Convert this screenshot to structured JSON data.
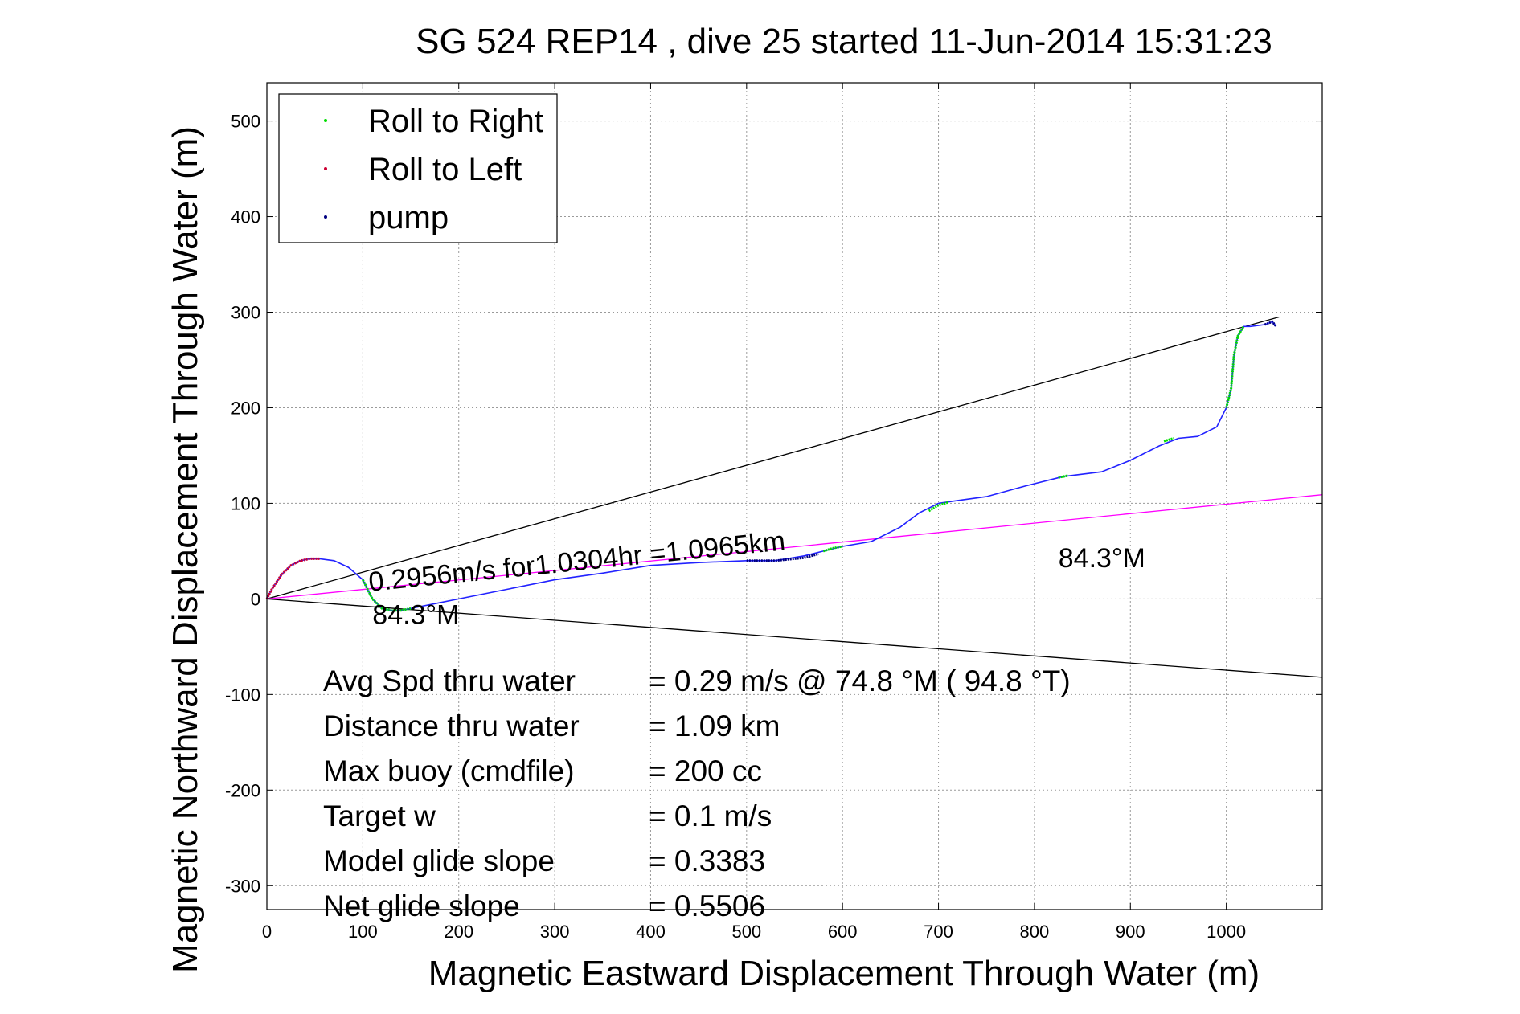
{
  "chart_data": {
    "type": "line",
    "title": "SG 524   REP14  , dive 25 started 11-Jun-2014 15:31:23",
    "xlabel": "Magnetic Eastward Displacement Through Water (m)",
    "ylabel": "Magnetic Northward Displacement Through Water (m)",
    "xlim": [
      0,
      1100
    ],
    "ylim": [
      -325,
      540
    ],
    "x_ticks": [
      0,
      100,
      200,
      300,
      400,
      500,
      600,
      700,
      800,
      900,
      1000
    ],
    "y_ticks": [
      -300,
      -200,
      -100,
      0,
      100,
      200,
      300,
      400,
      500
    ],
    "grid": true,
    "legend_position": "top-left",
    "legend": [
      {
        "label": "Roll to Right",
        "color": "#00dd00"
      },
      {
        "label": "Roll to Left",
        "color": "#cc0033"
      },
      {
        "label": "pump",
        "color": "#000080"
      }
    ],
    "track": {
      "name": "track",
      "color": "#2222ff",
      "x": [
        0,
        5,
        15,
        25,
        35,
        45,
        55,
        70,
        85,
        100,
        105,
        110,
        115,
        120,
        130,
        140,
        150,
        160,
        175,
        200,
        250,
        300,
        350,
        400,
        450,
        500,
        530,
        560,
        580,
        600,
        630,
        660,
        680,
        700,
        720,
        750,
        790,
        830,
        870,
        900,
        930,
        950,
        970,
        990,
        1000,
        1005,
        1008,
        1012,
        1018,
        1025,
        1040,
        1048,
        1052
      ],
      "y": [
        0,
        10,
        25,
        35,
        40,
        42,
        42,
        40,
        33,
        20,
        10,
        0,
        -5,
        -10,
        -12,
        -12,
        -10,
        -8,
        -5,
        0,
        10,
        20,
        27,
        35,
        38,
        40,
        40,
        45,
        50,
        55,
        60,
        75,
        90,
        100,
        103,
        107,
        118,
        128,
        133,
        145,
        160,
        168,
        170,
        180,
        200,
        220,
        255,
        275,
        285,
        285,
        287,
        290,
        285
      ]
    },
    "roll_right": [
      {
        "x": [
          100,
          105,
          110,
          115,
          120,
          130,
          140,
          150
        ],
        "y": [
          20,
          10,
          0,
          -5,
          -10,
          -12,
          -12,
          -10
        ]
      },
      {
        "x": [
          580,
          590,
          600
        ],
        "y": [
          50,
          53,
          55
        ]
      },
      {
        "x": [
          690,
          700,
          710
        ],
        "y": [
          92,
          98,
          101
        ]
      },
      {
        "x": [
          825,
          835
        ],
        "y": [
          127,
          129
        ]
      },
      {
        "x": [
          935,
          945
        ],
        "y": [
          165,
          168
        ]
      },
      {
        "x": [
          1000,
          1005,
          1008,
          1012,
          1018
        ],
        "y": [
          200,
          220,
          255,
          275,
          285
        ]
      }
    ],
    "roll_left": [
      {
        "x": [
          0,
          5,
          15,
          25,
          35,
          45,
          55
        ],
        "y": [
          0,
          10,
          25,
          35,
          40,
          42,
          42
        ]
      }
    ],
    "pump": [
      {
        "x": [
          500,
          530,
          560,
          575
        ],
        "y": [
          40,
          40,
          43,
          47
        ]
      },
      {
        "x": [
          1040,
          1048,
          1052
        ],
        "y": [
          287,
          290,
          285
        ]
      }
    ],
    "reference_lines": [
      {
        "name": "upper-bound-line",
        "color": "#000000",
        "x": [
          0,
          1055
        ],
        "y": [
          0,
          295
        ]
      },
      {
        "name": "lower-bound-line",
        "color": "#000000",
        "x": [
          0,
          1100
        ],
        "y": [
          0,
          -82
        ]
      },
      {
        "name": "heading-line",
        "color": "#ff00ff",
        "x": [
          0,
          1100
        ],
        "y": [
          0,
          109
        ]
      }
    ],
    "annotations": [
      {
        "name": "speed-annotation",
        "text": "0.2956m/s for1.0304hr =1.0965km",
        "x": 107,
        "y": 8,
        "angle": 5.7
      },
      {
        "name": "heading-annotation-left",
        "text": "84.3°M",
        "x": 110,
        "y": -26,
        "angle": 0
      },
      {
        "name": "heading-annotation-right",
        "text": "84.3°M",
        "x": 825,
        "y": 33,
        "angle": 0
      }
    ],
    "stats": [
      {
        "label": "Avg Spd thru water",
        "value": "=  0.29 m/s @  74.8 °M ( 94.8 °T)"
      },
      {
        "label": "Distance thru water",
        "value": "=  1.09 km"
      },
      {
        "label": "Max buoy (cmdfile)",
        "value": "= 200 cc"
      },
      {
        "label": "Target w",
        "value": "= 0.1 m/s"
      },
      {
        "label": "Model glide slope",
        "value": "= 0.3383"
      },
      {
        "label": "Net glide slope",
        "value": "= 0.5506"
      }
    ]
  }
}
